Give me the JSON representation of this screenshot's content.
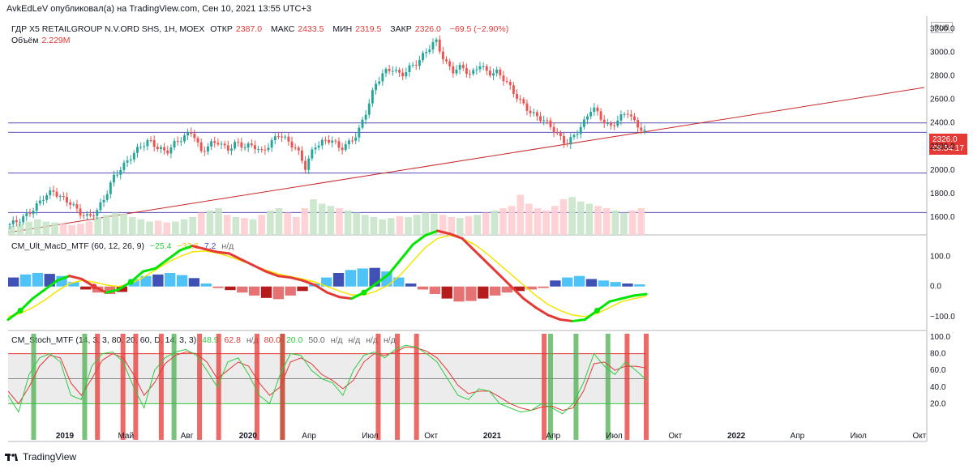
{
  "header": {
    "publisher": "AvkEdLeV опубликовал(а) на TradingView.com, Сен 10, 2021 13:55 UTC+3"
  },
  "main_legend": {
    "symbol": "ГДР X5 RETAILGROUP N.V.ORD SHS, 1Н, MOEX",
    "open_label": "ОТКР",
    "open": "2387.0",
    "high_label": "МАКС",
    "high": "2433.5",
    "low_label": "МИН",
    "low": "2319.5",
    "close_label": "ЗАКР",
    "close": "2326.0",
    "change": "−69.5 (−2.90%)"
  },
  "volume_legend": {
    "label": "Объём",
    "value": "2.229M"
  },
  "macd_legend": {
    "name": "CM_Ult_MacD_MTF (60, 12, 26, 9)",
    "v1": "−25.4",
    "v2": "−32.6",
    "v3": "7.2",
    "v4": "н/д"
  },
  "stoch_legend": {
    "name": "CM_Stoch_MTF (14, 3, 3, 80, 20, 60, D, 14, 3, 3)",
    "v1": "48.9",
    "v2": "62.8",
    "v3": "н/д",
    "v4": "80.0",
    "v5": "20.0",
    "v6": "50.0",
    "v7": "н/д",
    "v8": "н/д",
    "v9": "н/д",
    "v10": "н/д"
  },
  "currency": "RUB",
  "last_price": {
    "value": "2326.0",
    "countdown": "09:54:17"
  },
  "footer": {
    "brand": "TradingView"
  },
  "colors": {
    "up": "#26a69a",
    "down": "#ef5350",
    "macd_up": "#00e600",
    "macd_down": "#e53935",
    "signal": "#ffeb3b",
    "level": "#5b4bb7",
    "trend": "#c62828"
  },
  "chart_data": [
    {
      "type": "candlestick",
      "ylabel": "",
      "ylim": [
        1450,
        3250
      ],
      "y_ticks": [
        "1600.0",
        "1800.0",
        "2000.0",
        "2200.0",
        "2400.0",
        "2600.0",
        "2800.0",
        "3000.0",
        "3200.0"
      ],
      "x_ticks": [
        "2019",
        "Май",
        "Авг",
        "2020",
        "Апр",
        "Июл",
        "Окт",
        "2021",
        "Апр",
        "Июл",
        "Окт",
        "2022",
        "Апр",
        "Июл",
        "Окт"
      ],
      "close_path": [
        1540,
        1570,
        1620,
        1690,
        1780,
        1820,
        1760,
        1720,
        1640,
        1600,
        1650,
        1780,
        1950,
        2030,
        2120,
        2200,
        2250,
        2190,
        2150,
        2230,
        2280,
        2330,
        2150,
        2220,
        2240,
        2170,
        2230,
        2200,
        2210,
        2150,
        2230,
        2310,
        2240,
        2180,
        2020,
        2200,
        2240,
        2260,
        2180,
        2230,
        2310,
        2500,
        2720,
        2830,
        2860,
        2800,
        2870,
        2920,
        3020,
        3100,
        2920,
        2840,
        2880,
        2800,
        2900,
        2820,
        2830,
        2760,
        2650,
        2560,
        2480,
        2440,
        2390,
        2300,
        2220,
        2300,
        2400,
        2540,
        2440,
        2360,
        2430,
        2500,
        2387,
        2326
      ],
      "horizontal_levels": [
        2400,
        2320,
        1975,
        1640
      ],
      "trend_line": {
        "from": [
          0,
          1470
        ],
        "to": [
          1,
          2700
        ]
      },
      "volume_path": [
        20,
        25,
        30,
        35,
        30,
        28,
        25,
        22,
        25,
        30,
        40,
        45,
        50,
        48,
        40,
        35,
        30,
        32,
        28,
        30,
        35,
        40,
        50,
        55,
        60,
        45,
        40,
        38,
        35,
        45,
        55,
        60,
        50,
        40,
        60,
        80,
        70,
        65,
        60,
        55,
        50,
        45,
        40,
        35,
        38,
        42,
        40,
        45,
        50,
        48,
        45,
        40,
        38,
        42,
        45,
        50,
        55,
        60,
        65,
        90,
        70,
        60,
        55,
        65,
        80,
        85,
        75,
        70,
        65,
        60,
        55,
        50,
        55,
        60
      ]
    },
    {
      "type": "line",
      "name": "CM_Ult_MacD_MTF",
      "y_ticks": [
        "100.0",
        "0.0",
        "−100.0"
      ],
      "ylim": [
        -130,
        150
      ],
      "macd_path": [
        -110,
        -80,
        -40,
        -10,
        20,
        35,
        25,
        0,
        -20,
        -10,
        15,
        50,
        60,
        90,
        120,
        135,
        125,
        115,
        110,
        90,
        70,
        50,
        35,
        30,
        20,
        5,
        -20,
        -35,
        -40,
        -20,
        10,
        40,
        90,
        140,
        170,
        185,
        175,
        160,
        120,
        80,
        40,
        0,
        -40,
        -70,
        -95,
        -110,
        -115,
        -110,
        -80,
        -50,
        -40,
        -30,
        -25.4
      ],
      "signal_path": [
        -100,
        -90,
        -70,
        -45,
        -15,
        10,
        20,
        15,
        5,
        0,
        10,
        30,
        55,
        80,
        100,
        115,
        118,
        112,
        100,
        85,
        70,
        55,
        42,
        33,
        25,
        15,
        0,
        -15,
        -28,
        -28,
        -15,
        5,
        40,
        85,
        130,
        160,
        170,
        160,
        140,
        110,
        75,
        40,
        5,
        -30,
        -60,
        -80,
        -95,
        -100,
        -90,
        -70,
        -50,
        -40,
        -32.6
      ],
      "histogram_path": [
        30,
        40,
        45,
        42,
        35,
        15,
        -10,
        -20,
        -25,
        -18,
        25,
        35,
        40,
        45,
        38,
        28,
        10,
        -5,
        -12,
        -20,
        -30,
        -38,
        -42,
        -30,
        -15,
        10,
        30,
        45,
        55,
        60,
        62,
        50,
        30,
        10,
        -10,
        -25,
        -40,
        -50,
        -48,
        -40,
        -30,
        -20,
        -15,
        -10,
        -5,
        20,
        30,
        35,
        25,
        20,
        15,
        10,
        7.2
      ]
    },
    {
      "type": "line",
      "name": "CM_Stoch_MTF",
      "y_ticks": [
        "100.0",
        "80.0",
        "60.0",
        "40.0",
        "20.0"
      ],
      "ylim": [
        0,
        100
      ],
      "bands": {
        "upper": 80.0,
        "mid": 50.0,
        "lower": 20.0
      },
      "k_path": [
        30,
        10,
        55,
        75,
        80,
        70,
        30,
        25,
        65,
        80,
        82,
        70,
        40,
        15,
        60,
        75,
        82,
        85,
        78,
        60,
        40,
        70,
        75,
        55,
        30,
        20,
        55,
        80,
        78,
        60,
        50,
        45,
        30,
        60,
        78,
        82,
        75,
        85,
        90,
        88,
        80,
        70,
        50,
        30,
        25,
        38,
        35,
        20,
        15,
        10,
        12,
        20,
        15,
        8,
        20,
        45,
        80,
        65,
        55,
        70,
        60,
        48.9
      ],
      "d_path": [
        35,
        20,
        40,
        65,
        78,
        75,
        45,
        30,
        50,
        72,
        80,
        75,
        55,
        30,
        45,
        68,
        78,
        82,
        80,
        70,
        50,
        60,
        70,
        65,
        45,
        30,
        40,
        70,
        75,
        68,
        55,
        48,
        38,
        48,
        70,
        80,
        78,
        82,
        88,
        87,
        83,
        75,
        60,
        42,
        32,
        35,
        35,
        28,
        20,
        15,
        12,
        16,
        17,
        12,
        15,
        35,
        68,
        70,
        60,
        65,
        65,
        62.8
      ],
      "green_signal_bars": [
        0.04,
        0.12,
        0.26,
        0.43,
        0.85,
        0.89,
        0.94
      ],
      "red_signal_bars": [
        0.14,
        0.18,
        0.2,
        0.24,
        0.3,
        0.33,
        0.39,
        0.43,
        0.58,
        0.61,
        0.64,
        0.84,
        0.97,
        1.0
      ]
    }
  ]
}
